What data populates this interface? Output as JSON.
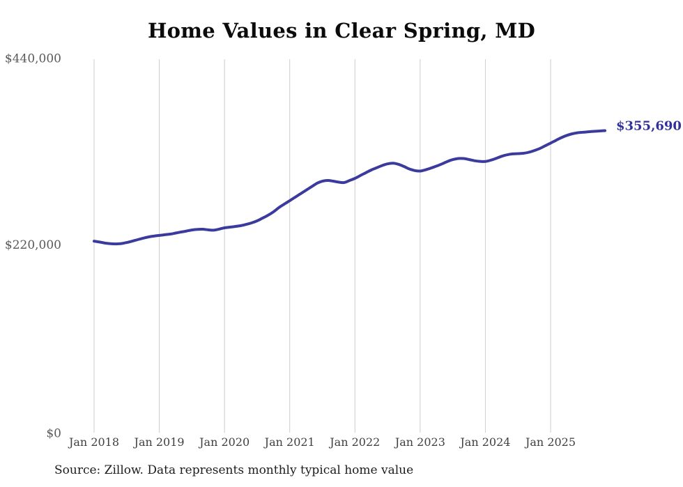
{
  "chart": {
    "title": "Home Values in Clear Spring, MD",
    "end_label": "$355,690",
    "source": "Source: Zillow. Data represents monthly typical home value",
    "colors": {
      "line": "#3b3b9d",
      "end_label": "#30309a",
      "grid": "#cccccc",
      "y_label": "#595959",
      "x_label": "#3f3f3f",
      "title": "#0b0b0b",
      "source": "#1c1c1c"
    }
  },
  "chart_data": {
    "type": "line",
    "title": "Home Values in Clear Spring, MD",
    "xlabel": "",
    "ylabel": "",
    "ylim": [
      0,
      440000
    ],
    "grid": "vertical-only",
    "legend": "none",
    "source_note": "Source: Zillow. Data represents monthly typical home value",
    "annotation": {
      "text": "$355,690",
      "value": 355690
    },
    "final_value": 355690,
    "y_ticks": [
      {
        "label": "$0",
        "value": 0
      },
      {
        "label": "$220,000",
        "value": 220000
      },
      {
        "label": "$440,000",
        "value": 440000
      }
    ],
    "x_tick_labels": [
      "Jan 2018",
      "Jan 2019",
      "Jan 2020",
      "Jan 2021",
      "Jan 2022",
      "Jan 2023",
      "Jan 2024",
      "Jan 2025"
    ],
    "x": [
      "2018-01",
      "2018-02",
      "2018-03",
      "2018-04",
      "2018-05",
      "2018-06",
      "2018-07",
      "2018-08",
      "2018-09",
      "2018-10",
      "2018-11",
      "2018-12",
      "2019-01",
      "2019-02",
      "2019-03",
      "2019-04",
      "2019-05",
      "2019-06",
      "2019-07",
      "2019-08",
      "2019-09",
      "2019-10",
      "2019-11",
      "2019-12",
      "2020-01",
      "2020-02",
      "2020-03",
      "2020-04",
      "2020-05",
      "2020-06",
      "2020-07",
      "2020-08",
      "2020-09",
      "2020-10",
      "2020-11",
      "2020-12",
      "2021-01",
      "2021-02",
      "2021-03",
      "2021-04",
      "2021-05",
      "2021-06",
      "2021-07",
      "2021-08",
      "2021-09",
      "2021-10",
      "2021-11",
      "2021-12",
      "2022-01",
      "2022-02",
      "2022-03",
      "2022-04",
      "2022-05",
      "2022-06",
      "2022-07",
      "2022-08",
      "2022-09",
      "2022-10",
      "2022-11",
      "2022-12",
      "2023-01",
      "2023-02",
      "2023-03",
      "2023-04",
      "2023-05",
      "2023-06",
      "2023-07",
      "2023-08",
      "2023-09",
      "2023-10",
      "2023-11",
      "2023-12",
      "2024-01",
      "2024-02",
      "2024-03",
      "2024-04",
      "2024-05",
      "2024-06",
      "2024-07",
      "2024-08",
      "2024-09",
      "2024-10",
      "2024-11",
      "2024-12",
      "2025-01",
      "2025-02",
      "2025-03",
      "2025-04",
      "2025-05",
      "2025-06",
      "2025-07",
      "2025-08",
      "2025-09",
      "2025-10",
      "2025-11"
    ],
    "values": [
      225300,
      224200,
      223000,
      222200,
      222000,
      222400,
      223600,
      225200,
      227000,
      228700,
      230200,
      231200,
      232000,
      232800,
      233600,
      234800,
      236000,
      237200,
      238400,
      239200,
      239300,
      238600,
      238200,
      239400,
      241000,
      241800,
      242600,
      243500,
      245000,
      246800,
      249200,
      252400,
      255800,
      259800,
      264800,
      269000,
      273000,
      277100,
      281200,
      285300,
      289400,
      293500,
      296000,
      296900,
      296100,
      294900,
      294400,
      296800,
      299400,
      302700,
      306000,
      309200,
      311900,
      314500,
      316500,
      317300,
      316000,
      313400,
      310500,
      308600,
      308000,
      309500,
      311500,
      313800,
      316400,
      319200,
      321500,
      322800,
      322800,
      321600,
      320200,
      319400,
      319300,
      320800,
      323000,
      325400,
      327200,
      328200,
      328600,
      329000,
      330200,
      332200,
      334600,
      337800,
      341000,
      344300,
      347500,
      350100,
      352000,
      353200,
      353800,
      354400,
      354900,
      355300,
      355690
    ]
  }
}
